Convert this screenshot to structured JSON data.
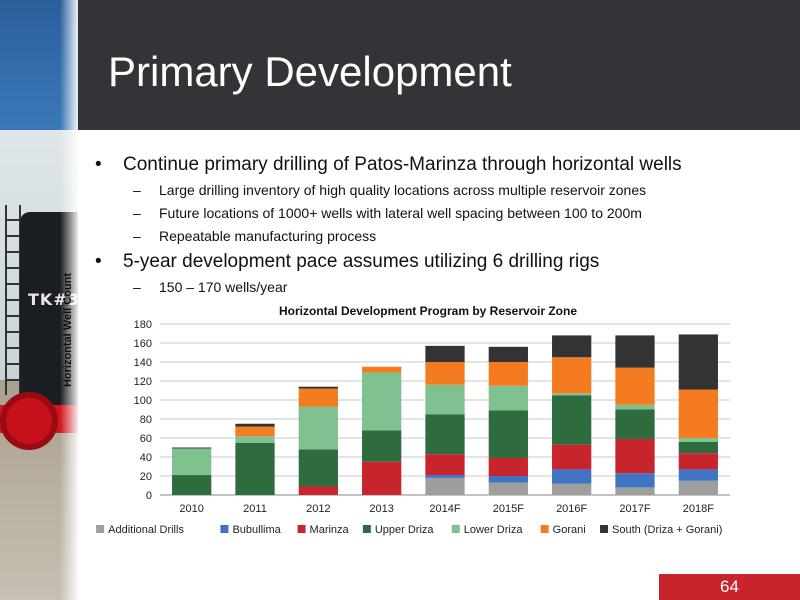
{
  "slide": {
    "title": "Primary Development",
    "page_number": "64",
    "photo_text": "TK#3"
  },
  "bullets": [
    {
      "text": "Continue primary drilling of Patos-Marinza through horizontal wells",
      "subs": [
        "Large drilling inventory of high quality locations across multiple reservoir zones",
        "Future locations of 1000+ wells with lateral well spacing between 100 to 200m",
        "Repeatable manufacturing process"
      ]
    },
    {
      "text": "5-year development pace assumes utilizing 6 drilling rigs",
      "subs": [
        "150 – 170 wells/year"
      ]
    }
  ],
  "symbols": {
    "bullet": "•",
    "dash": "–"
  },
  "chart_data": {
    "type": "bar",
    "stacked": true,
    "title": "Horizontal Development Program by Reservoir Zone",
    "xlabel": "",
    "ylabel": "Horizontal Well Count",
    "ylim": [
      0,
      180
    ],
    "yticks": [
      0,
      20,
      40,
      60,
      80,
      100,
      120,
      140,
      160,
      180
    ],
    "grid": true,
    "legend": "bottom",
    "categories": [
      "2010",
      "2011",
      "2012",
      "2013",
      "2014F",
      "2015F",
      "2016F",
      "2017F",
      "2018F"
    ],
    "series": [
      {
        "name": "Additional Drills",
        "color": "#9e9e9e",
        "values": [
          0,
          0,
          0,
          0,
          18,
          13,
          12,
          8,
          15
        ]
      },
      {
        "name": "Bubullima",
        "color": "#3f74c4",
        "values": [
          0,
          0,
          0,
          0,
          3,
          7,
          15,
          15,
          12
        ]
      },
      {
        "name": "Marinza",
        "color": "#c8242b",
        "values": [
          0,
          0,
          9,
          35,
          22,
          19,
          26,
          36,
          17
        ]
      },
      {
        "name": "Upper Driza",
        "color": "#2e6b3f",
        "values": [
          21,
          55,
          39,
          33,
          42,
          50,
          52,
          31,
          12
        ]
      },
      {
        "name": "Lower Driza",
        "color": "#7fc18f",
        "values": [
          28,
          7,
          45,
          61,
          31,
          26,
          2,
          5,
          4
        ]
      },
      {
        "name": "Gorani",
        "color": "#f47b20",
        "values": [
          0,
          10,
          19,
          6,
          24,
          25,
          38,
          39,
          51
        ]
      },
      {
        "name": "South (Driza + Gorani)",
        "color": "#333333",
        "values": [
          1,
          3,
          2,
          0,
          17,
          16,
          23,
          34,
          58
        ]
      }
    ]
  }
}
